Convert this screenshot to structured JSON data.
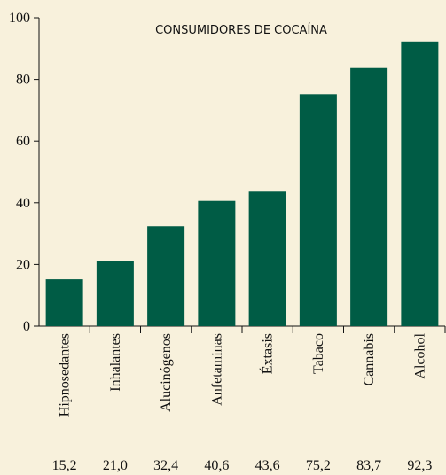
{
  "chart_data": {
    "type": "bar",
    "title": "CONSUMIDORES DE COCAÍNA",
    "categories": [
      "Hipnosedantes",
      "Inhalantes",
      "Alucinógenos",
      "Anfetaminas",
      "Éxtasis",
      "Tabaco",
      "Cannabis",
      "Alcohol"
    ],
    "values": [
      15.2,
      21.0,
      32.4,
      40.6,
      43.6,
      75.2,
      83.7,
      92.3
    ],
    "value_labels": [
      "15,2",
      "21,0",
      "32,4",
      "40,6",
      "43,6",
      "75,2",
      "83,7",
      "92,3"
    ],
    "color": "#005c45",
    "ylim": [
      0,
      100
    ],
    "yticks": [
      0,
      20,
      40,
      60,
      80,
      100
    ],
    "grid": false
  }
}
